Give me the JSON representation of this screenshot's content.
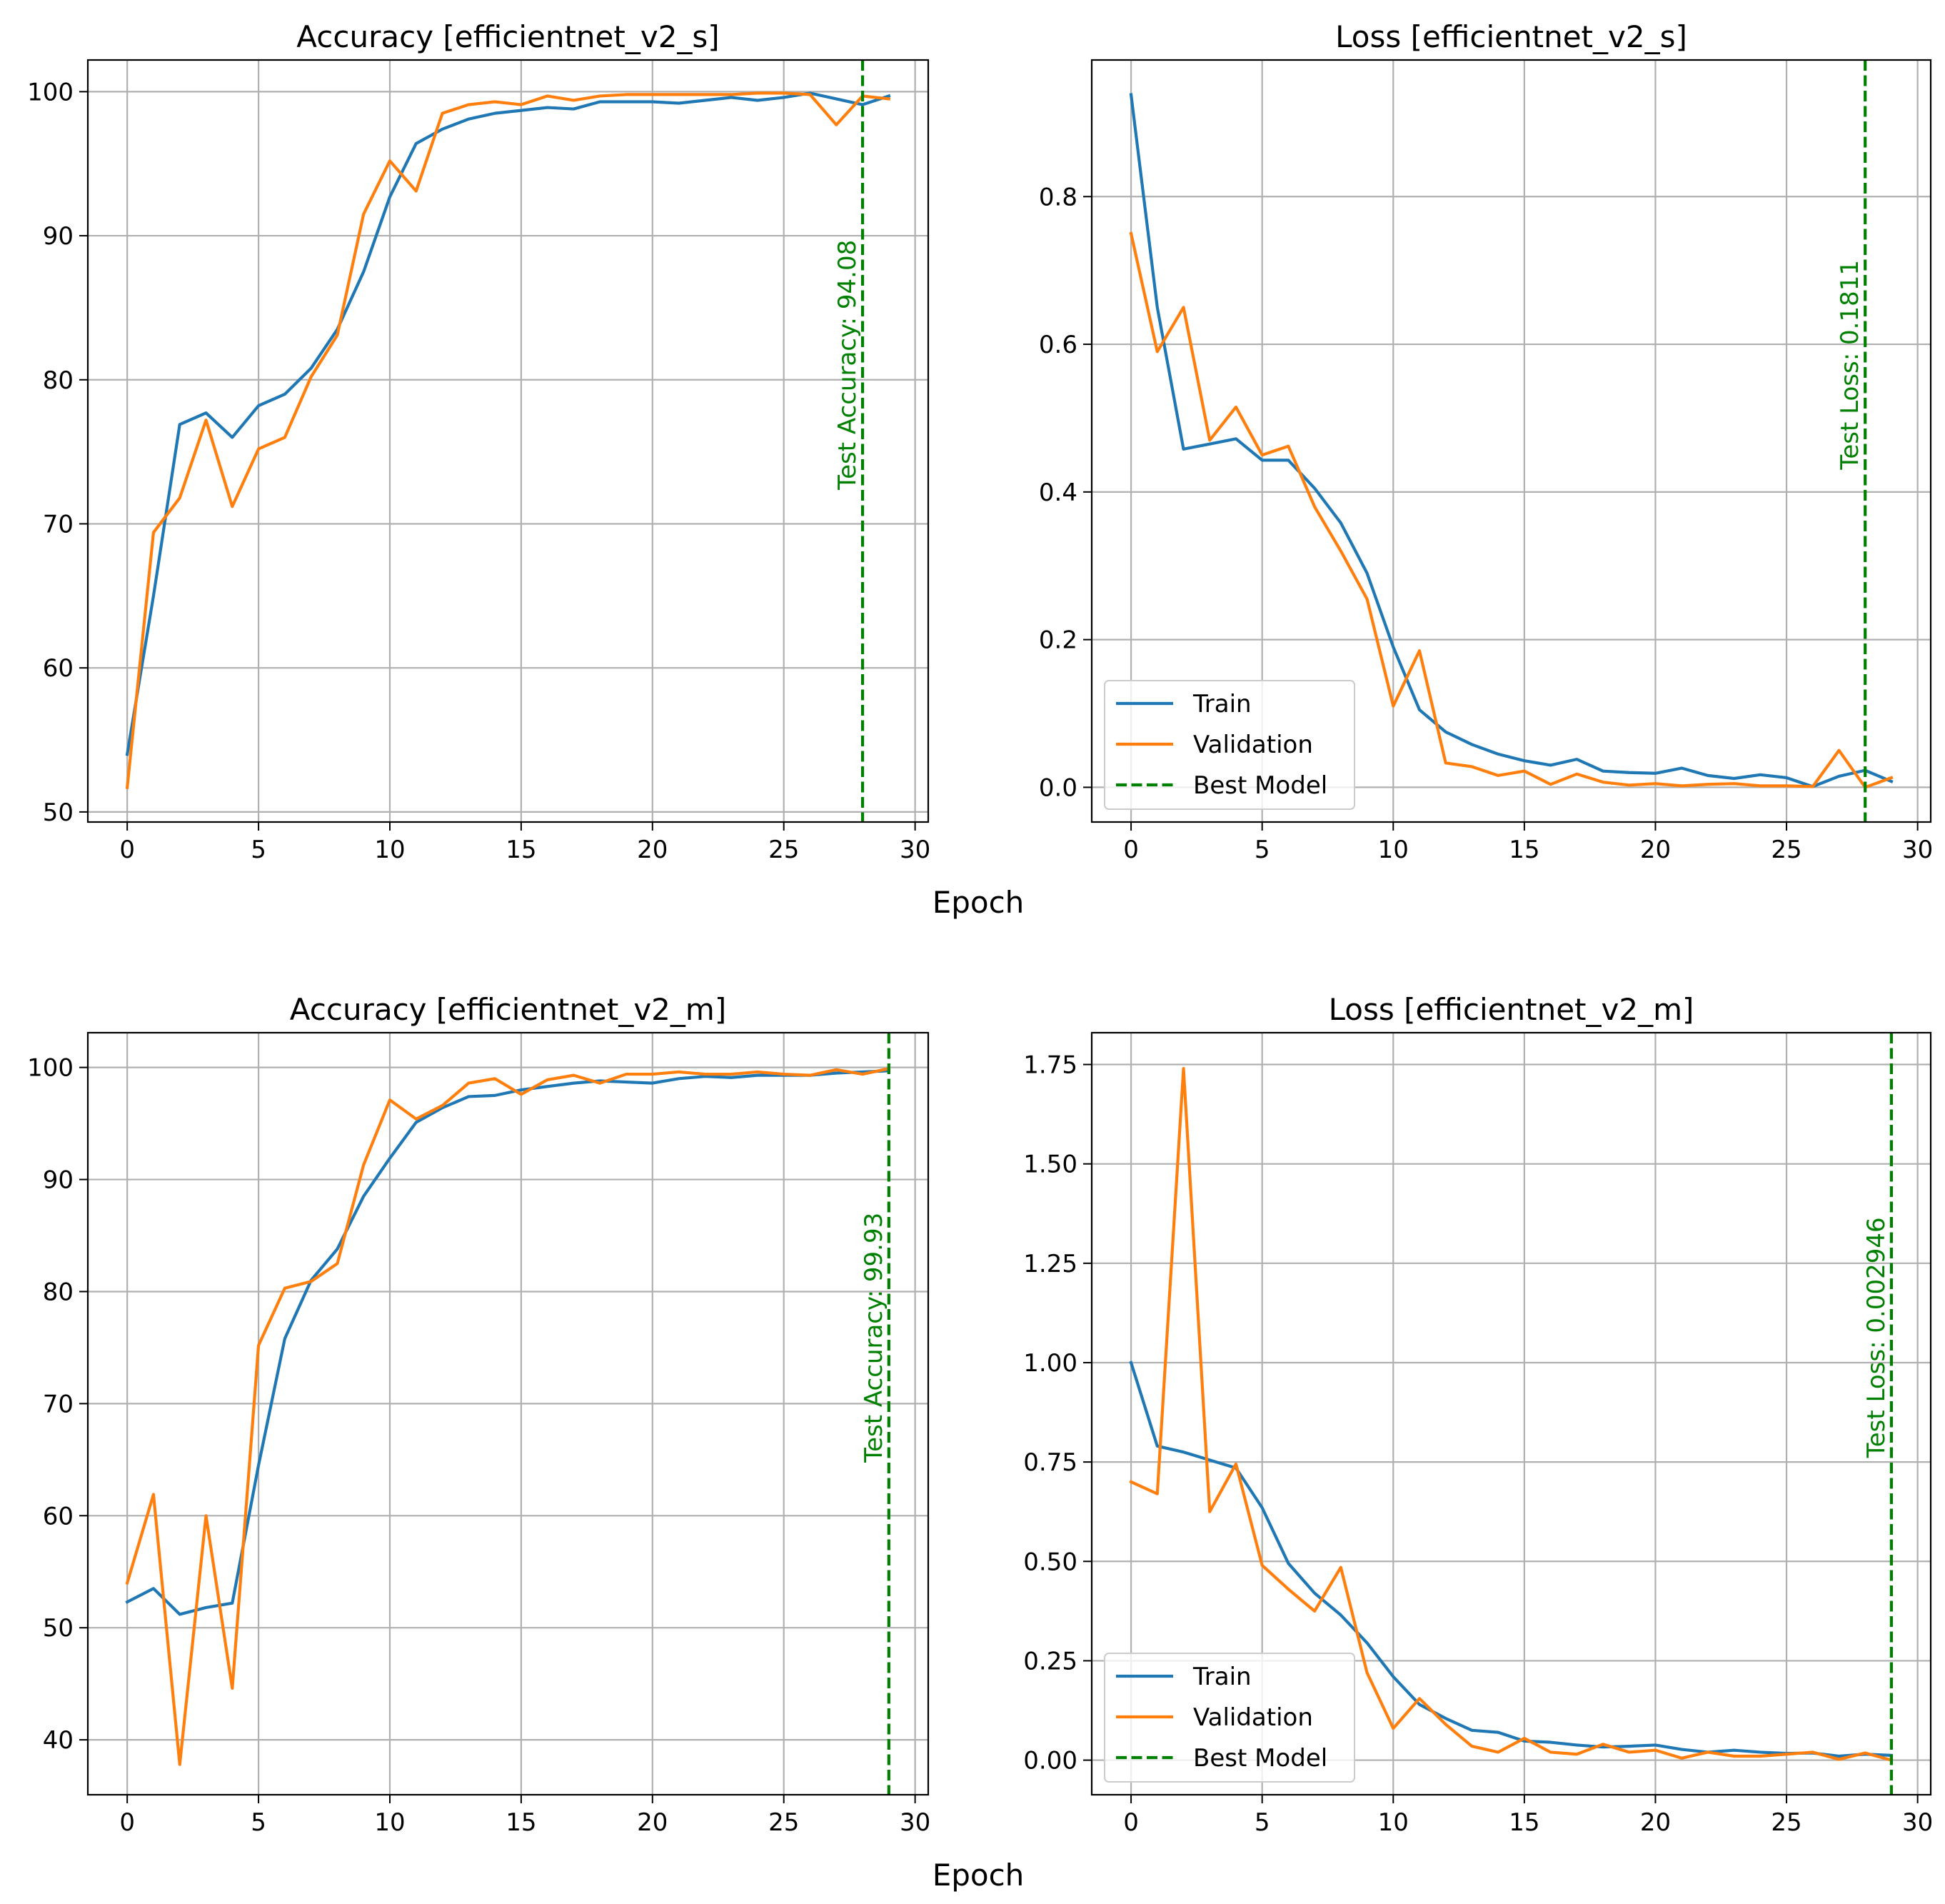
{
  "colors": {
    "train": "#1f77b4",
    "validation": "#ff7f0e",
    "best": "#008000",
    "grid": "#b0b0b0",
    "axis": "#000000"
  },
  "figure": {
    "xlabel_top": "Epoch",
    "xlabel_bottom": "Epoch"
  },
  "chart_data": [
    {
      "type": "line",
      "title": "Accuracy [efficientnet_v2_s]",
      "xlabel": "",
      "ylabel": "",
      "xlim": [
        -1.5,
        30.5
      ],
      "ylim": [
        49.3,
        102.2
      ],
      "xticks": [
        0,
        5,
        10,
        15,
        20,
        25,
        30
      ],
      "yticks": [
        50,
        60,
        70,
        80,
        90,
        100
      ],
      "grid": true,
      "x": [
        0,
        1,
        2,
        3,
        4,
        5,
        6,
        7,
        8,
        9,
        10,
        11,
        12,
        13,
        14,
        15,
        16,
        17,
        18,
        19,
        20,
        21,
        22,
        23,
        24,
        25,
        26,
        27,
        28,
        29
      ],
      "series": [
        {
          "name": "Train",
          "values": [
            54.0,
            65.0,
            76.9,
            77.7,
            76.0,
            78.2,
            79.0,
            80.8,
            83.5,
            87.5,
            92.7,
            96.4,
            97.4,
            98.1,
            98.5,
            98.7,
            98.9,
            98.8,
            99.3,
            99.3,
            99.3,
            99.2,
            99.4,
            99.6,
            99.4,
            99.6,
            99.9,
            99.5,
            99.1,
            99.7
          ]
        },
        {
          "name": "Validation",
          "values": [
            51.7,
            69.4,
            71.8,
            77.2,
            71.2,
            75.2,
            76.0,
            80.2,
            83.1,
            91.5,
            95.2,
            93.1,
            98.5,
            99.1,
            99.3,
            99.1,
            99.7,
            99.4,
            99.7,
            99.8,
            99.8,
            99.8,
            99.8,
            99.8,
            99.9,
            99.9,
            99.8,
            97.7,
            99.7,
            99.5
          ]
        }
      ],
      "best_model": {
        "x": 28,
        "label": "Test Accuracy: 94.08"
      },
      "legend": null
    },
    {
      "type": "line",
      "title": "Loss [efficientnet_v2_s]",
      "xlabel": "",
      "ylabel": "",
      "xlim": [
        -1.5,
        30.5
      ],
      "ylim": [
        -0.047,
        0.985
      ],
      "xticks": [
        0,
        5,
        10,
        15,
        20,
        25,
        30
      ],
      "yticks": [
        0.0,
        0.2,
        0.4,
        0.6,
        0.8
      ],
      "ytick_labels": [
        "0.0",
        "0.2",
        "0.4",
        "0.6",
        "0.8"
      ],
      "grid": true,
      "x": [
        0,
        1,
        2,
        3,
        4,
        5,
        6,
        7,
        8,
        9,
        10,
        11,
        12,
        13,
        14,
        15,
        16,
        17,
        18,
        19,
        20,
        21,
        22,
        23,
        24,
        25,
        26,
        27,
        28,
        29
      ],
      "series": [
        {
          "name": "Train",
          "values": [
            0.938,
            0.65,
            0.458,
            0.465,
            0.472,
            0.443,
            0.443,
            0.405,
            0.358,
            0.29,
            0.19,
            0.105,
            0.075,
            0.058,
            0.045,
            0.036,
            0.03,
            0.038,
            0.022,
            0.02,
            0.019,
            0.026,
            0.016,
            0.012,
            0.017,
            0.013,
            0.001,
            0.015,
            0.023,
            0.008
          ]
        },
        {
          "name": "Validation",
          "values": [
            0.75,
            0.59,
            0.65,
            0.47,
            0.515,
            0.45,
            0.462,
            0.38,
            0.32,
            0.255,
            0.11,
            0.185,
            0.033,
            0.028,
            0.016,
            0.022,
            0.004,
            0.018,
            0.007,
            0.003,
            0.005,
            0.002,
            0.004,
            0.005,
            0.002,
            0.002,
            0.001,
            0.05,
            0.0,
            0.013
          ]
        }
      ],
      "best_model": {
        "x": 28,
        "label": "Test Loss: 0.1811"
      },
      "legend": {
        "position": "lower-left",
        "entries": [
          "Train",
          "Validation",
          "Best Model"
        ]
      }
    },
    {
      "type": "line",
      "title": "Accuracy [efficientnet_v2_m]",
      "xlabel": "",
      "ylabel": "",
      "xlim": [
        -1.5,
        30.5
      ],
      "ylim": [
        35.1,
        103.1
      ],
      "xticks": [
        0,
        5,
        10,
        15,
        20,
        25,
        30
      ],
      "yticks": [
        40,
        50,
        60,
        70,
        80,
        90,
        100
      ],
      "grid": true,
      "x": [
        0,
        1,
        2,
        3,
        4,
        5,
        6,
        7,
        8,
        9,
        10,
        11,
        12,
        13,
        14,
        15,
        16,
        17,
        18,
        19,
        20,
        21,
        22,
        23,
        24,
        25,
        26,
        27,
        28,
        29
      ],
      "series": [
        {
          "name": "Train",
          "values": [
            52.3,
            53.5,
            51.2,
            51.8,
            52.2,
            64.5,
            75.8,
            81.0,
            83.8,
            88.5,
            91.9,
            95.1,
            96.4,
            97.4,
            97.5,
            98.0,
            98.3,
            98.6,
            98.8,
            98.7,
            98.6,
            99.0,
            99.2,
            99.1,
            99.3,
            99.3,
            99.3,
            99.5,
            99.6,
            99.7
          ]
        },
        {
          "name": "Validation",
          "values": [
            54.0,
            61.9,
            37.8,
            60.0,
            44.6,
            75.2,
            80.3,
            80.9,
            82.5,
            91.3,
            97.1,
            95.4,
            96.6,
            98.6,
            99.0,
            97.6,
            98.9,
            99.3,
            98.6,
            99.4,
            99.4,
            99.6,
            99.4,
            99.4,
            99.6,
            99.4,
            99.3,
            99.8,
            99.4,
            99.9
          ]
        }
      ],
      "best_model": {
        "x": 29,
        "label": "Test Accuracy: 99.93"
      },
      "legend": null
    },
    {
      "type": "line",
      "title": "Loss [efficientnet_v2_m]",
      "xlabel": "",
      "ylabel": "",
      "xlim": [
        -1.5,
        30.5
      ],
      "ylim": [
        -0.087,
        1.83
      ],
      "xticks": [
        0,
        5,
        10,
        15,
        20,
        25,
        30
      ],
      "yticks": [
        0.0,
        0.25,
        0.5,
        0.75,
        1.0,
        1.25,
        1.5,
        1.75
      ],
      "ytick_labels": [
        "0.00",
        "0.25",
        "0.50",
        "0.75",
        "1.00",
        "1.25",
        "1.50",
        "1.75"
      ],
      "grid": true,
      "x": [
        0,
        1,
        2,
        3,
        4,
        5,
        6,
        7,
        8,
        9,
        10,
        11,
        12,
        13,
        14,
        15,
        16,
        17,
        18,
        19,
        20,
        21,
        22,
        23,
        24,
        25,
        26,
        27,
        28,
        29
      ],
      "series": [
        {
          "name": "Train",
          "values": [
            1.0,
            0.79,
            0.775,
            0.755,
            0.735,
            0.635,
            0.495,
            0.42,
            0.365,
            0.295,
            0.21,
            0.14,
            0.105,
            0.075,
            0.07,
            0.048,
            0.045,
            0.038,
            0.033,
            0.035,
            0.038,
            0.027,
            0.02,
            0.025,
            0.02,
            0.017,
            0.018,
            0.01,
            0.015,
            0.012
          ]
        },
        {
          "name": "Validation",
          "values": [
            0.7,
            0.67,
            1.74,
            0.625,
            0.745,
            0.49,
            0.43,
            0.375,
            0.485,
            0.22,
            0.08,
            0.155,
            0.09,
            0.035,
            0.02,
            0.055,
            0.02,
            0.015,
            0.04,
            0.02,
            0.025,
            0.005,
            0.02,
            0.01,
            0.01,
            0.015,
            0.02,
            0.002,
            0.018,
            0.0
          ]
        }
      ],
      "best_model": {
        "x": 29,
        "label": "Test Loss: 0.002946"
      },
      "legend": {
        "position": "lower-left",
        "entries": [
          "Train",
          "Validation",
          "Best Model"
        ]
      }
    }
  ]
}
